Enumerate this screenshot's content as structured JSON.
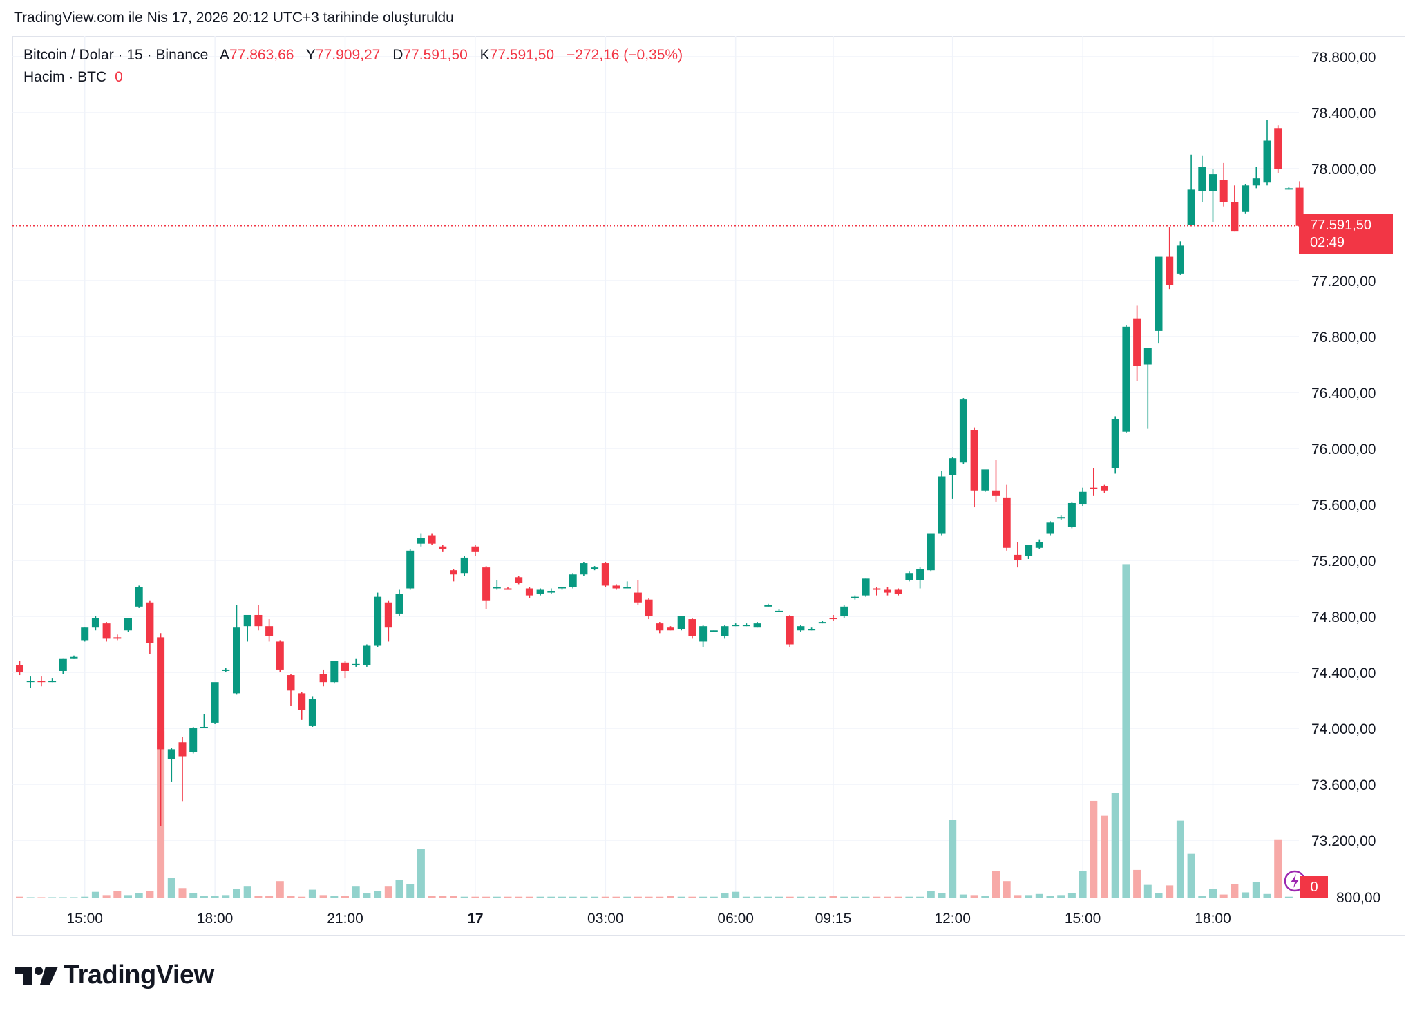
{
  "header": {
    "title": "TradingView.com ile Nis 17, 2026 20:12 UTC+3 tarihinde oluşturuldu"
  },
  "legend": {
    "symbol": "Bitcoin / Dolar · 15 · Binance",
    "open_key": "A",
    "open": "77.863,66",
    "high_key": "Y",
    "high": "77.909,27",
    "low_key": "D",
    "low": "77.591,50",
    "close_key": "K",
    "close": "77.591,50",
    "change": "−272,16 (−0,35%)",
    "volume_label": "Hacim · BTC",
    "volume_value": "0"
  },
  "price_badge": {
    "price": "77.591,50",
    "countdown": "02:49"
  },
  "volume_badge": {
    "value": "0"
  },
  "brand": {
    "name": "TradingView"
  },
  "icons": {
    "brand": "tradingview-logo-icon",
    "flash": "lightning-icon"
  },
  "colors": {
    "up": "#089981",
    "down": "#f23645",
    "up_volume": "#92d2cc",
    "down_volume": "#f7a9a7",
    "grid": "#f0f3fa"
  },
  "chart_data": {
    "type": "candlestick",
    "interval": "15",
    "exchange": "Binance",
    "symbol": "Bitcoin / Dolar",
    "y_axis": {
      "side": "right",
      "ylim": [
        72700,
        78900
      ],
      "ticks": [
        78800,
        78400,
        78000,
        77200,
        76800,
        76400,
        76000,
        75600,
        75200,
        74800,
        74400,
        74000,
        73600,
        73200
      ],
      "tick_labels": [
        "78.800,00",
        "78.400,00",
        "78.000,00",
        "77.200,00",
        "76.800,00",
        "76.400,00",
        "76.000,00",
        "75.600,00",
        "75.200,00",
        "74.800,00",
        "74.400,00",
        "74.000,00",
        "73.600,00",
        "73.200,00"
      ],
      "clipped_bottom_label": "800,00"
    },
    "x_axis": {
      "tick_labels": [
        "15:00",
        "18:00",
        "21:00",
        "17",
        "03:00",
        "06:00",
        "09:15",
        "12:00",
        "15:00",
        "18:00"
      ],
      "tick_bar_index": [
        6,
        18,
        30,
        42,
        54,
        66,
        75,
        86,
        98,
        110
      ]
    },
    "last_price": 77591.5,
    "grid": true,
    "candles": [
      {
        "o": 74450,
        "h": 74480,
        "l": 74380,
        "c": 74400
      },
      {
        "o": 74340,
        "h": 74370,
        "l": 74290,
        "c": 74340
      },
      {
        "o": 74340,
        "h": 74370,
        "l": 74300,
        "c": 74330
      },
      {
        "o": 74340,
        "h": 74360,
        "l": 74330,
        "c": 74340
      },
      {
        "o": 74410,
        "h": 74500,
        "l": 74390,
        "c": 74500
      },
      {
        "o": 74510,
        "h": 74520,
        "l": 74500,
        "c": 74510
      },
      {
        "o": 74630,
        "h": 74720,
        "l": 74620,
        "c": 74720
      },
      {
        "o": 74720,
        "h": 74800,
        "l": 74700,
        "c": 74790
      },
      {
        "o": 74750,
        "h": 74760,
        "l": 74620,
        "c": 74640
      },
      {
        "o": 74650,
        "h": 74670,
        "l": 74630,
        "c": 74640
      },
      {
        "o": 74700,
        "h": 74790,
        "l": 74690,
        "c": 74790
      },
      {
        "o": 74870,
        "h": 75020,
        "l": 74860,
        "c": 75010
      },
      {
        "o": 74900,
        "h": 74910,
        "l": 74530,
        "c": 74610
      },
      {
        "o": 74650,
        "h": 74680,
        "l": 73300,
        "c": 73850
      },
      {
        "o": 73780,
        "h": 73860,
        "l": 73620,
        "c": 73850
      },
      {
        "o": 73900,
        "h": 73940,
        "l": 73480,
        "c": 73800
      },
      {
        "o": 73830,
        "h": 74010,
        "l": 73820,
        "c": 74000
      },
      {
        "o": 74010,
        "h": 74100,
        "l": 74000,
        "c": 74010
      },
      {
        "o": 74040,
        "h": 74320,
        "l": 74030,
        "c": 74330
      },
      {
        "o": 74420,
        "h": 74430,
        "l": 74400,
        "c": 74420
      },
      {
        "o": 74250,
        "h": 74880,
        "l": 74240,
        "c": 74720
      },
      {
        "o": 74730,
        "h": 74800,
        "l": 74620,
        "c": 74810
      },
      {
        "o": 74810,
        "h": 74880,
        "l": 74700,
        "c": 74730
      },
      {
        "o": 74730,
        "h": 74780,
        "l": 74620,
        "c": 74660
      },
      {
        "o": 74620,
        "h": 74630,
        "l": 74400,
        "c": 74420
      },
      {
        "o": 74380,
        "h": 74390,
        "l": 74160,
        "c": 74270
      },
      {
        "o": 74250,
        "h": 74260,
        "l": 74060,
        "c": 74130
      },
      {
        "o": 74020,
        "h": 74230,
        "l": 74010,
        "c": 74210
      },
      {
        "o": 74390,
        "h": 74420,
        "l": 74300,
        "c": 74330
      },
      {
        "o": 74330,
        "h": 74480,
        "l": 74320,
        "c": 74480
      },
      {
        "o": 74470,
        "h": 74480,
        "l": 74360,
        "c": 74410
      },
      {
        "o": 74450,
        "h": 74500,
        "l": 74440,
        "c": 74460
      },
      {
        "o": 74450,
        "h": 74600,
        "l": 74440,
        "c": 74590
      },
      {
        "o": 74590,
        "h": 74970,
        "l": 74580,
        "c": 74940
      },
      {
        "o": 74900,
        "h": 74910,
        "l": 74620,
        "c": 74720
      },
      {
        "o": 74820,
        "h": 74990,
        "l": 74800,
        "c": 74960
      },
      {
        "o": 75000,
        "h": 75280,
        "l": 74990,
        "c": 75270
      },
      {
        "o": 75320,
        "h": 75390,
        "l": 75300,
        "c": 75360
      },
      {
        "o": 75380,
        "h": 75390,
        "l": 75310,
        "c": 75320
      },
      {
        "o": 75300,
        "h": 75310,
        "l": 75260,
        "c": 75280
      },
      {
        "o": 75130,
        "h": 75140,
        "l": 75050,
        "c": 75100
      },
      {
        "o": 75110,
        "h": 75230,
        "l": 75090,
        "c": 75220
      },
      {
        "o": 75300,
        "h": 75310,
        "l": 75230,
        "c": 75260
      },
      {
        "o": 75150,
        "h": 75160,
        "l": 74850,
        "c": 74910
      },
      {
        "o": 75010,
        "h": 75060,
        "l": 74990,
        "c": 75010
      },
      {
        "o": 75000,
        "h": 75010,
        "l": 74990,
        "c": 74990
      },
      {
        "o": 75080,
        "h": 75090,
        "l": 75030,
        "c": 75040
      },
      {
        "o": 75000,
        "h": 75010,
        "l": 74930,
        "c": 74950
      },
      {
        "o": 74960,
        "h": 75000,
        "l": 74950,
        "c": 74990
      },
      {
        "o": 74980,
        "h": 75000,
        "l": 74960,
        "c": 74980
      },
      {
        "o": 75000,
        "h": 75010,
        "l": 74990,
        "c": 75010
      },
      {
        "o": 75010,
        "h": 75110,
        "l": 75000,
        "c": 75100
      },
      {
        "o": 75100,
        "h": 75190,
        "l": 75090,
        "c": 75180
      },
      {
        "o": 75150,
        "h": 75160,
        "l": 75130,
        "c": 75150
      },
      {
        "o": 75180,
        "h": 75190,
        "l": 75010,
        "c": 75020
      },
      {
        "o": 75020,
        "h": 75030,
        "l": 74990,
        "c": 75000
      },
      {
        "o": 75010,
        "h": 75050,
        "l": 75000,
        "c": 75010
      },
      {
        "o": 74970,
        "h": 75060,
        "l": 74880,
        "c": 74900
      },
      {
        "o": 74920,
        "h": 74930,
        "l": 74780,
        "c": 74800
      },
      {
        "o": 74750,
        "h": 74760,
        "l": 74680,
        "c": 74700
      },
      {
        "o": 74720,
        "h": 74730,
        "l": 74700,
        "c": 74700
      },
      {
        "o": 74710,
        "h": 74800,
        "l": 74700,
        "c": 74800
      },
      {
        "o": 74780,
        "h": 74790,
        "l": 74640,
        "c": 74660
      },
      {
        "o": 74620,
        "h": 74740,
        "l": 74580,
        "c": 74730
      },
      {
        "o": 74690,
        "h": 74700,
        "l": 74690,
        "c": 74700
      },
      {
        "o": 74660,
        "h": 74740,
        "l": 74640,
        "c": 74730
      },
      {
        "o": 74740,
        "h": 74750,
        "l": 74730,
        "c": 74740
      },
      {
        "o": 74740,
        "h": 74750,
        "l": 74730,
        "c": 74740
      },
      {
        "o": 74720,
        "h": 74760,
        "l": 74720,
        "c": 74750
      },
      {
        "o": 74880,
        "h": 74890,
        "l": 74870,
        "c": 74880
      },
      {
        "o": 74840,
        "h": 74850,
        "l": 74830,
        "c": 74840
      },
      {
        "o": 74800,
        "h": 74810,
        "l": 74580,
        "c": 74600
      },
      {
        "o": 74700,
        "h": 74740,
        "l": 74690,
        "c": 74730
      },
      {
        "o": 74710,
        "h": 74720,
        "l": 74700,
        "c": 74710
      },
      {
        "o": 74760,
        "h": 74770,
        "l": 74750,
        "c": 74760
      },
      {
        "o": 74790,
        "h": 74810,
        "l": 74770,
        "c": 74780
      },
      {
        "o": 74800,
        "h": 74880,
        "l": 74790,
        "c": 74870
      },
      {
        "o": 74930,
        "h": 74950,
        "l": 74920,
        "c": 74940
      },
      {
        "o": 74950,
        "h": 75070,
        "l": 74940,
        "c": 75070
      },
      {
        "o": 75000,
        "h": 75010,
        "l": 74950,
        "c": 74990
      },
      {
        "o": 74990,
        "h": 75010,
        "l": 74950,
        "c": 74970
      },
      {
        "o": 74990,
        "h": 75000,
        "l": 74950,
        "c": 74960
      },
      {
        "o": 75060,
        "h": 75120,
        "l": 75050,
        "c": 75110
      },
      {
        "o": 75060,
        "h": 75150,
        "l": 75000,
        "c": 75140
      },
      {
        "o": 75130,
        "h": 75390,
        "l": 75120,
        "c": 75390
      },
      {
        "o": 75390,
        "h": 75840,
        "l": 75380,
        "c": 75800
      },
      {
        "o": 75810,
        "h": 75940,
        "l": 75640,
        "c": 75930
      },
      {
        "o": 75900,
        "h": 76360,
        "l": 75890,
        "c": 76350
      },
      {
        "o": 76130,
        "h": 76150,
        "l": 75580,
        "c": 75700
      },
      {
        "o": 75700,
        "h": 75800,
        "l": 75690,
        "c": 75850
      },
      {
        "o": 75700,
        "h": 75920,
        "l": 75620,
        "c": 75660
      },
      {
        "o": 75650,
        "h": 75740,
        "l": 75270,
        "c": 75290
      },
      {
        "o": 75240,
        "h": 75330,
        "l": 75150,
        "c": 75200
      },
      {
        "o": 75230,
        "h": 75310,
        "l": 75210,
        "c": 75310
      },
      {
        "o": 75290,
        "h": 75350,
        "l": 75280,
        "c": 75330
      },
      {
        "o": 75390,
        "h": 75480,
        "l": 75380,
        "c": 75470
      },
      {
        "o": 75500,
        "h": 75520,
        "l": 75490,
        "c": 75510
      },
      {
        "o": 75440,
        "h": 75620,
        "l": 75430,
        "c": 75610
      },
      {
        "o": 75600,
        "h": 75720,
        "l": 75590,
        "c": 75690
      },
      {
        "o": 75720,
        "h": 75860,
        "l": 75660,
        "c": 75710
      },
      {
        "o": 75730,
        "h": 75740,
        "l": 75680,
        "c": 75700
      },
      {
        "o": 75860,
        "h": 76230,
        "l": 75820,
        "c": 76210
      },
      {
        "o": 76120,
        "h": 76880,
        "l": 76110,
        "c": 76870
      },
      {
        "o": 76930,
        "h": 77020,
        "l": 76480,
        "c": 76590
      },
      {
        "o": 76600,
        "h": 76700,
        "l": 76140,
        "c": 76720
      },
      {
        "o": 76840,
        "h": 77360,
        "l": 76750,
        "c": 77370
      },
      {
        "o": 77370,
        "h": 77580,
        "l": 77140,
        "c": 77170
      },
      {
        "o": 77250,
        "h": 77480,
        "l": 77240,
        "c": 77450
      },
      {
        "o": 77600,
        "h": 78100,
        "l": 77590,
        "c": 77850
      },
      {
        "o": 77840,
        "h": 78090,
        "l": 77760,
        "c": 78010
      },
      {
        "o": 77840,
        "h": 78000,
        "l": 77620,
        "c": 77960
      },
      {
        "o": 77920,
        "h": 78040,
        "l": 77730,
        "c": 77760
      },
      {
        "o": 77760,
        "h": 77880,
        "l": 77550,
        "c": 77550
      },
      {
        "o": 77690,
        "h": 77890,
        "l": 77680,
        "c": 77880
      },
      {
        "o": 77880,
        "h": 78010,
        "l": 77860,
        "c": 77930
      },
      {
        "o": 77900,
        "h": 78350,
        "l": 77880,
        "c": 78200
      },
      {
        "o": 78290,
        "h": 78310,
        "l": 77970,
        "c": 78000
      },
      {
        "o": 77860,
        "h": 77870,
        "l": 77850,
        "c": 77860
      },
      {
        "o": 77863.66,
        "h": 77909.27,
        "l": 77591.5,
        "c": 77591.5
      }
    ],
    "volumes": [
      0.3,
      0.2,
      0.2,
      0.2,
      0.2,
      0.2,
      0.3,
      1.2,
      0.6,
      1.3,
      0.6,
      1.0,
      1.4,
      31.2,
      3.8,
      1.9,
      1.0,
      0.4,
      0.5,
      0.6,
      1.7,
      2.3,
      0.4,
      0.4,
      3.2,
      0.5,
      0.3,
      1.6,
      0.6,
      0.5,
      0.4,
      2.3,
      0.9,
      1.4,
      2.3,
      3.4,
      2.6,
      9.2,
      0.5,
      0.4,
      0.4,
      0.3,
      0.3,
      0.3,
      0.3,
      0.3,
      0.3,
      0.3,
      0.3,
      0.3,
      0.3,
      0.3,
      0.3,
      0.3,
      0.3,
      0.3,
      0.3,
      0.3,
      0.3,
      0.3,
      0.4,
      0.3,
      0.3,
      0.3,
      0.3,
      0.9,
      1.2,
      0.3,
      0.3,
      0.3,
      0.3,
      0.3,
      0.3,
      0.3,
      0.3,
      0.4,
      0.3,
      0.3,
      0.3,
      0.3,
      0.3,
      0.3,
      0.3,
      0.3,
      1.4,
      1.0,
      14.7,
      0.7,
      0.6,
      0.5,
      5.1,
      3.2,
      0.6,
      0.6,
      0.8,
      0.5,
      0.6,
      1.0,
      5.1,
      18.2,
      15.4,
      19.7,
      62.4,
      5.3,
      2.5,
      1.0,
      2.4,
      14.5,
      8.3,
      0.5,
      1.8,
      0.7,
      2.7,
      1.1,
      3.0,
      0.8,
      11.0,
      0.3
    ]
  }
}
